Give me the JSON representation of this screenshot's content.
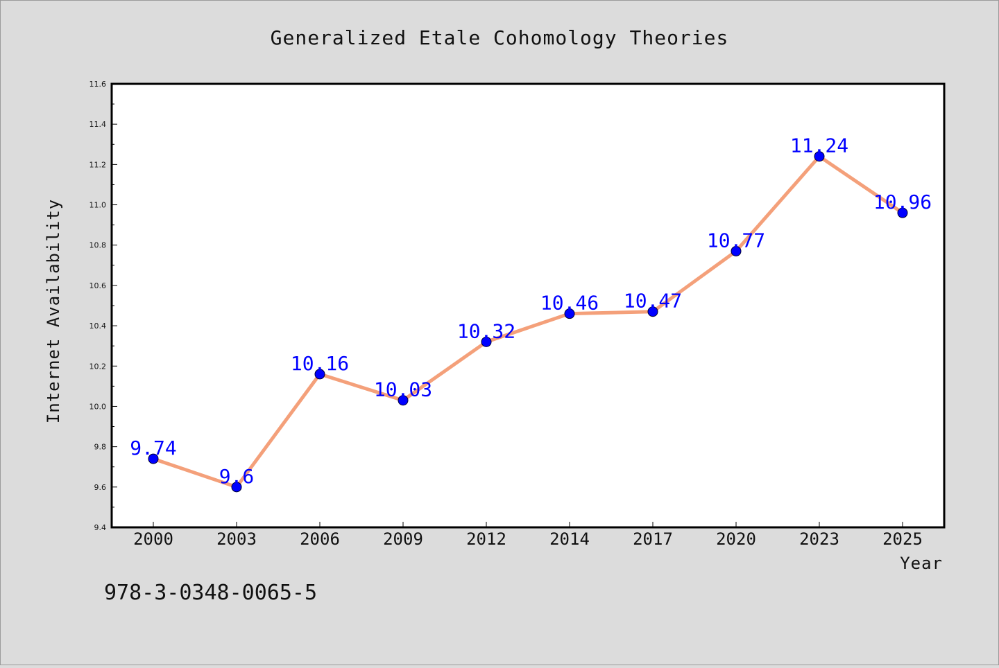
{
  "chart_data": {
    "type": "line",
    "title": "Generalized Etale Cohomology Theories",
    "xlabel": "Year",
    "ylabel": "Internet Availability",
    "categories": [
      "2000",
      "2003",
      "2006",
      "2009",
      "2012",
      "2014",
      "2017",
      "2020",
      "2023",
      "2025"
    ],
    "series": [
      {
        "values": [
          9.74,
          9.6,
          10.16,
          10.03,
          10.32,
          10.46,
          10.47,
          10.77,
          11.24,
          10.96
        ],
        "labels": [
          "9.74",
          "9.6",
          "10.16",
          "10.03",
          "10.32",
          "10.46",
          "10.47",
          "10.77",
          "11.24",
          "10.96"
        ]
      }
    ],
    "ylim": [
      9.4,
      11.6
    ],
    "yticks": [
      "9.4",
      "9.6",
      "9.8",
      "10.0",
      "10.2",
      "10.4",
      "10.6",
      "10.8",
      "11.0",
      "11.2",
      "11.4",
      "11.6"
    ],
    "grid": false,
    "legend": "none",
    "colors": {
      "line": "#f4a07a",
      "marker": "#0000ff",
      "data_label": "#0000ff",
      "plot_background": "#ffffff",
      "figure_background": "#dcdcdc"
    }
  },
  "footer": {
    "isbn": "978-3-0348-0065-5"
  }
}
